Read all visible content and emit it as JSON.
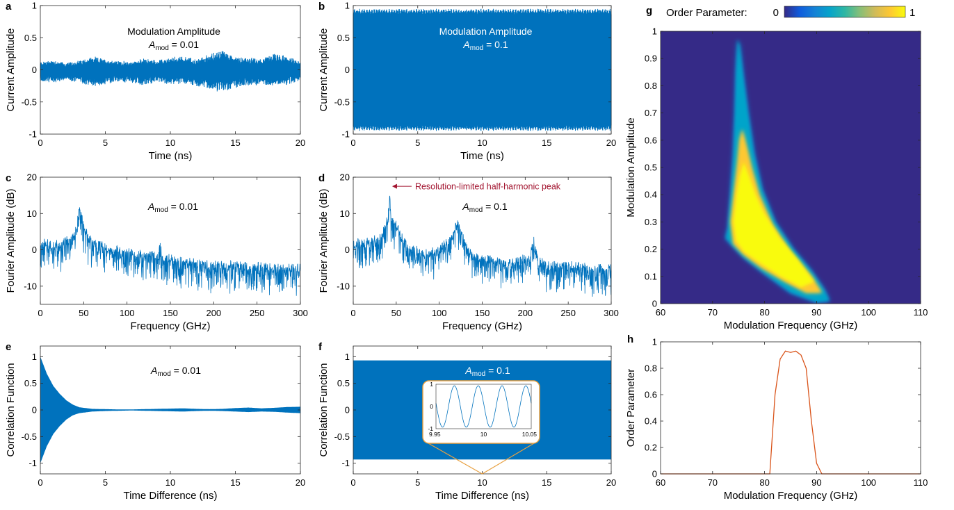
{
  "colors": {
    "signal": "#0072BD",
    "order": "#D95319",
    "annotation": "#A2142F",
    "inset_frame": "#E8A040"
  },
  "chart_data": [
    {
      "id": "a",
      "type": "line",
      "panel_label": "a",
      "xlabel": "Time (ns)",
      "ylabel": "Current Amplitude",
      "xlim": [
        0,
        20
      ],
      "ylim": [
        -1,
        1
      ],
      "xticks": [
        0,
        5,
        10,
        15,
        20
      ],
      "xtick_labels": [
        "0",
        "5",
        "10",
        "15",
        "20"
      ],
      "yticks": [
        1,
        0.5,
        0,
        -0.5,
        -1
      ],
      "ytick_labels": [
        "1",
        "0.5",
        "0",
        "-0.5",
        "-1"
      ],
      "annotation_line1": "Modulation Amplitude",
      "annotation_sym": "A",
      "annotation_sub": "mod",
      "annotation_val": " = 0.01",
      "envelope": {
        "t": [
          0,
          1,
          2,
          3,
          4,
          5,
          6,
          7,
          8,
          9,
          10,
          11,
          12,
          13,
          14,
          15,
          16,
          17,
          18,
          19,
          20
        ],
        "upper": [
          0.12,
          0.15,
          0.1,
          0.14,
          0.2,
          0.16,
          0.13,
          0.12,
          0.17,
          0.14,
          0.18,
          0.22,
          0.15,
          0.24,
          0.3,
          0.2,
          0.18,
          0.17,
          0.25,
          0.2,
          0.12
        ],
        "lower": [
          -0.18,
          -0.2,
          -0.16,
          -0.2,
          -0.25,
          -0.22,
          -0.18,
          -0.2,
          -0.24,
          -0.18,
          -0.22,
          -0.2,
          -0.26,
          -0.3,
          -0.35,
          -0.28,
          -0.24,
          -0.22,
          -0.24,
          -0.22,
          -0.15
        ]
      }
    },
    {
      "id": "b",
      "type": "line",
      "panel_label": "b",
      "xlabel": "Time (ns)",
      "ylabel": "Current Amplitude",
      "xlim": [
        0,
        20
      ],
      "ylim": [
        -1,
        1
      ],
      "xticks": [
        0,
        5,
        10,
        15,
        20
      ],
      "xtick_labels": [
        "0",
        "5",
        "10",
        "15",
        "20"
      ],
      "yticks": [
        1,
        0.5,
        0,
        -0.5,
        -1
      ],
      "ytick_labels": [
        "1",
        "0.5",
        "0",
        "-0.5",
        "-1"
      ],
      "annotation_line1": "Modulation Amplitude",
      "annotation_sym": "A",
      "annotation_sub": "mod",
      "annotation_val": " = 0.1",
      "envelope": {
        "t": [
          0,
          20
        ],
        "upper": [
          0.85,
          0.85
        ],
        "lower": [
          -0.85,
          -0.85
        ]
      }
    },
    {
      "id": "c",
      "type": "line",
      "panel_label": "c",
      "xlabel": "Frequency (GHz)",
      "ylabel": "Fourier Amplitude (dB)",
      "xlim": [
        0,
        300
      ],
      "ylim": [
        -15,
        20
      ],
      "xticks": [
        0,
        50,
        100,
        150,
        200,
        250,
        300
      ],
      "xtick_labels": [
        "0",
        "50",
        "100",
        "150",
        "200",
        "250",
        "300"
      ],
      "yticks": [
        20,
        10,
        0,
        -10
      ],
      "ytick_labels": [
        "20",
        "10",
        "0",
        "-10"
      ],
      "annotation_sym": "A",
      "annotation_sub": "mod",
      "annotation_val": " = 0.01",
      "spectrum": {
        "f": [
          0,
          20,
          35,
          42,
          46,
          50,
          60,
          80,
          100,
          120,
          135,
          138,
          142,
          160,
          200,
          250,
          300
        ],
        "db": [
          2,
          1.5,
          3,
          7,
          13,
          6,
          2,
          0.5,
          -0.5,
          -1.5,
          -1.5,
          2,
          -2,
          -3,
          -4,
          -4.5,
          -5
        ]
      }
    },
    {
      "id": "d",
      "type": "line",
      "panel_label": "d",
      "xlabel": "Frequency (GHz)",
      "ylabel": "Fourier Amplitude (dB)",
      "xlim": [
        0,
        300
      ],
      "ylim": [
        -15,
        20
      ],
      "xticks": [
        0,
        50,
        100,
        150,
        200,
        250,
        300
      ],
      "xtick_labels": [
        "0",
        "50",
        "100",
        "150",
        "200",
        "250",
        "300"
      ],
      "yticks": [
        20,
        10,
        0,
        -10
      ],
      "ytick_labels": [
        "20",
        "10",
        "0",
        "-10"
      ],
      "annotation_sym": "A",
      "annotation_sub": "mod",
      "annotation_val": " = 0.1",
      "callout": "Resolution-limited half-harmonic peak",
      "callout_at": [
        42,
        17.5
      ],
      "spectrum": {
        "f": [
          0,
          20,
          35,
          40,
          42,
          44,
          50,
          60,
          80,
          100,
          115,
          122,
          128,
          140,
          180,
          205,
          210,
          215,
          230,
          260,
          300
        ],
        "db": [
          2,
          2,
          5,
          9,
          17.5,
          9,
          7,
          2,
          -1,
          0,
          4,
          8,
          3,
          -2,
          -3.5,
          -2,
          4,
          -3,
          -4,
          -4.5,
          -5
        ]
      }
    },
    {
      "id": "e",
      "type": "line",
      "panel_label": "e",
      "xlabel": "Time Difference (ns)",
      "ylabel": "Correlation Function",
      "xlim": [
        0,
        20
      ],
      "ylim": [
        -1.2,
        1.2
      ],
      "xticks": [
        0,
        5,
        10,
        15,
        20
      ],
      "xtick_labels": [
        "0",
        "5",
        "10",
        "15",
        "20"
      ],
      "yticks": [
        1,
        0.5,
        0,
        -0.5,
        -1
      ],
      "ytick_labels": [
        "1",
        "0.5",
        "0",
        "-0.5",
        "-1"
      ],
      "annotation_sym": "A",
      "annotation_sub": "mod",
      "annotation_val": " = 0.01",
      "envelope": {
        "t": [
          0,
          0.5,
          1,
          1.5,
          2,
          2.5,
          3,
          4,
          5,
          6,
          7,
          8,
          9,
          10,
          11,
          12,
          13,
          14,
          15,
          16,
          17,
          18,
          19,
          20
        ],
        "upper": [
          1,
          0.68,
          0.45,
          0.3,
          0.18,
          0.1,
          0.05,
          0.02,
          0.015,
          0.01,
          0.01,
          0.015,
          0.02,
          0.025,
          0.03,
          0.02,
          0.015,
          0.02,
          0.035,
          0.045,
          0.03,
          0.04,
          0.055,
          0.06
        ],
        "lower": [
          -1,
          -0.68,
          -0.45,
          -0.3,
          -0.18,
          -0.1,
          -0.06,
          -0.03,
          -0.02,
          -0.015,
          -0.01,
          -0.015,
          -0.02,
          -0.025,
          -0.03,
          -0.02,
          -0.015,
          -0.02,
          -0.03,
          -0.04,
          -0.03,
          -0.035,
          -0.05,
          -0.06
        ]
      }
    },
    {
      "id": "f",
      "type": "line",
      "panel_label": "f",
      "xlabel": "Time Difference (ns)",
      "ylabel": "Correlation Function",
      "xlim": [
        0,
        20
      ],
      "ylim": [
        -1.2,
        1.2
      ],
      "xticks": [
        0,
        5,
        10,
        15,
        20
      ],
      "xtick_labels": [
        "0",
        "5",
        "10",
        "15",
        "20"
      ],
      "yticks": [
        1,
        0.5,
        0,
        -0.5,
        -1
      ],
      "ytick_labels": [
        "1",
        "0.5",
        "0",
        "-0.5",
        "-1"
      ],
      "annotation_sym": "A",
      "annotation_sub": "mod",
      "annotation_val": " = 0.1",
      "envelope": {
        "t": [
          0,
          20
        ],
        "upper": [
          0.93,
          0.93
        ],
        "lower": [
          -0.93,
          -0.93
        ]
      },
      "inset": {
        "xlim": [
          9.95,
          10.05
        ],
        "ylim": [
          -1,
          1
        ],
        "xticks": [
          9.95,
          10,
          10.05
        ],
        "xtick_labels": [
          "9.95",
          "10",
          "10.05"
        ],
        "yticks": [
          1,
          0,
          -1
        ],
        "ytick_labels": [
          "1",
          "0",
          "-1"
        ],
        "cycles": 4,
        "zoom_point": 10
      }
    },
    {
      "id": "g",
      "type": "heatmap",
      "panel_label": "g",
      "xlabel": "Modulation Frequency (GHz)",
      "ylabel": "Modulation Amplitude",
      "xlim": [
        60,
        110
      ],
      "ylim": [
        0,
        1
      ],
      "xticks": [
        60,
        70,
        80,
        90,
        100,
        110
      ],
      "xtick_labels": [
        "60",
        "70",
        "80",
        "90",
        "100",
        "110"
      ],
      "yticks": [
        1,
        0.9,
        0.8,
        0.7,
        0.6,
        0.5,
        0.4,
        0.3,
        0.2,
        0.1,
        0
      ],
      "ytick_labels": [
        "1",
        "0.9",
        "0.8",
        "0.7",
        "0.6",
        "0.5",
        "0.4",
        "0.3",
        "0.2",
        "0.1",
        "0"
      ],
      "colorbar": {
        "label": "Order Parameter:",
        "min": 0,
        "max": 1,
        "min_label": "0",
        "max_label": "1"
      },
      "colormap": [
        "#352A87",
        "#0F5CDD",
        "#1481D6",
        "#06A4CA",
        "#2EB7A4",
        "#87BF77",
        "#D1BB59",
        "#FEC832",
        "#F9FB0E"
      ],
      "region_outer": [
        [
          73,
          0.28
        ],
        [
          73.5,
          0.4
        ],
        [
          74,
          0.55
        ],
        [
          74.3,
          0.7
        ],
        [
          74.5,
          0.85
        ],
        [
          74.8,
          0.97
        ],
        [
          75.2,
          0.95
        ],
        [
          75.8,
          0.85
        ],
        [
          76.8,
          0.7
        ],
        [
          78,
          0.55
        ],
        [
          79.5,
          0.42
        ],
        [
          82,
          0.3
        ],
        [
          85.5,
          0.2
        ],
        [
          89,
          0.12
        ],
        [
          91.5,
          0.05
        ],
        [
          92.5,
          0.01
        ],
        [
          90,
          0.005
        ],
        [
          85,
          0.04
        ],
        [
          80,
          0.11
        ],
        [
          76,
          0.17
        ],
        [
          74,
          0.21
        ],
        [
          72.5,
          0.24
        ]
      ],
      "region_mid": [
        [
          73.5,
          0.3
        ],
        [
          74.2,
          0.42
        ],
        [
          74.8,
          0.52
        ],
        [
          75.2,
          0.6
        ],
        [
          75.7,
          0.64
        ],
        [
          76.5,
          0.58
        ],
        [
          77.5,
          0.5
        ],
        [
          79,
          0.4
        ],
        [
          81.5,
          0.29
        ],
        [
          85,
          0.19
        ],
        [
          89,
          0.1
        ],
        [
          91,
          0.04
        ],
        [
          88,
          0.04
        ],
        [
          84,
          0.08
        ],
        [
          79.5,
          0.13
        ],
        [
          76,
          0.18
        ],
        [
          74,
          0.22
        ]
      ],
      "region_inner": [
        [
          74,
          0.3
        ],
        [
          74.6,
          0.4
        ],
        [
          75.2,
          0.47
        ],
        [
          76,
          0.52
        ],
        [
          77,
          0.47
        ],
        [
          78.3,
          0.4
        ],
        [
          80,
          0.33
        ],
        [
          83,
          0.24
        ],
        [
          86.5,
          0.16
        ],
        [
          89.5,
          0.08
        ],
        [
          87,
          0.06
        ],
        [
          83,
          0.1
        ],
        [
          79,
          0.15
        ],
        [
          76,
          0.19
        ],
        [
          74.5,
          0.23
        ]
      ]
    },
    {
      "id": "h",
      "type": "line",
      "panel_label": "h",
      "xlabel": "Modulation Frequency (GHz)",
      "ylabel": "Order Parameter",
      "xlim": [
        60,
        110
      ],
      "ylim": [
        0,
        1
      ],
      "xticks": [
        60,
        70,
        80,
        90,
        100,
        110
      ],
      "xtick_labels": [
        "60",
        "70",
        "80",
        "90",
        "100",
        "110"
      ],
      "yticks": [
        1,
        0.8,
        0.6,
        0.4,
        0.2,
        0
      ],
      "ytick_labels": [
        "1",
        "0.8",
        "0.6",
        "0.4",
        "0.2",
        "0"
      ],
      "x": [
        60,
        81,
        82,
        83,
        84,
        85,
        86,
        87,
        88,
        89,
        90,
        91,
        110
      ],
      "y": [
        0,
        0,
        0.6,
        0.87,
        0.93,
        0.92,
        0.93,
        0.9,
        0.8,
        0.4,
        0.08,
        0,
        0
      ]
    }
  ]
}
